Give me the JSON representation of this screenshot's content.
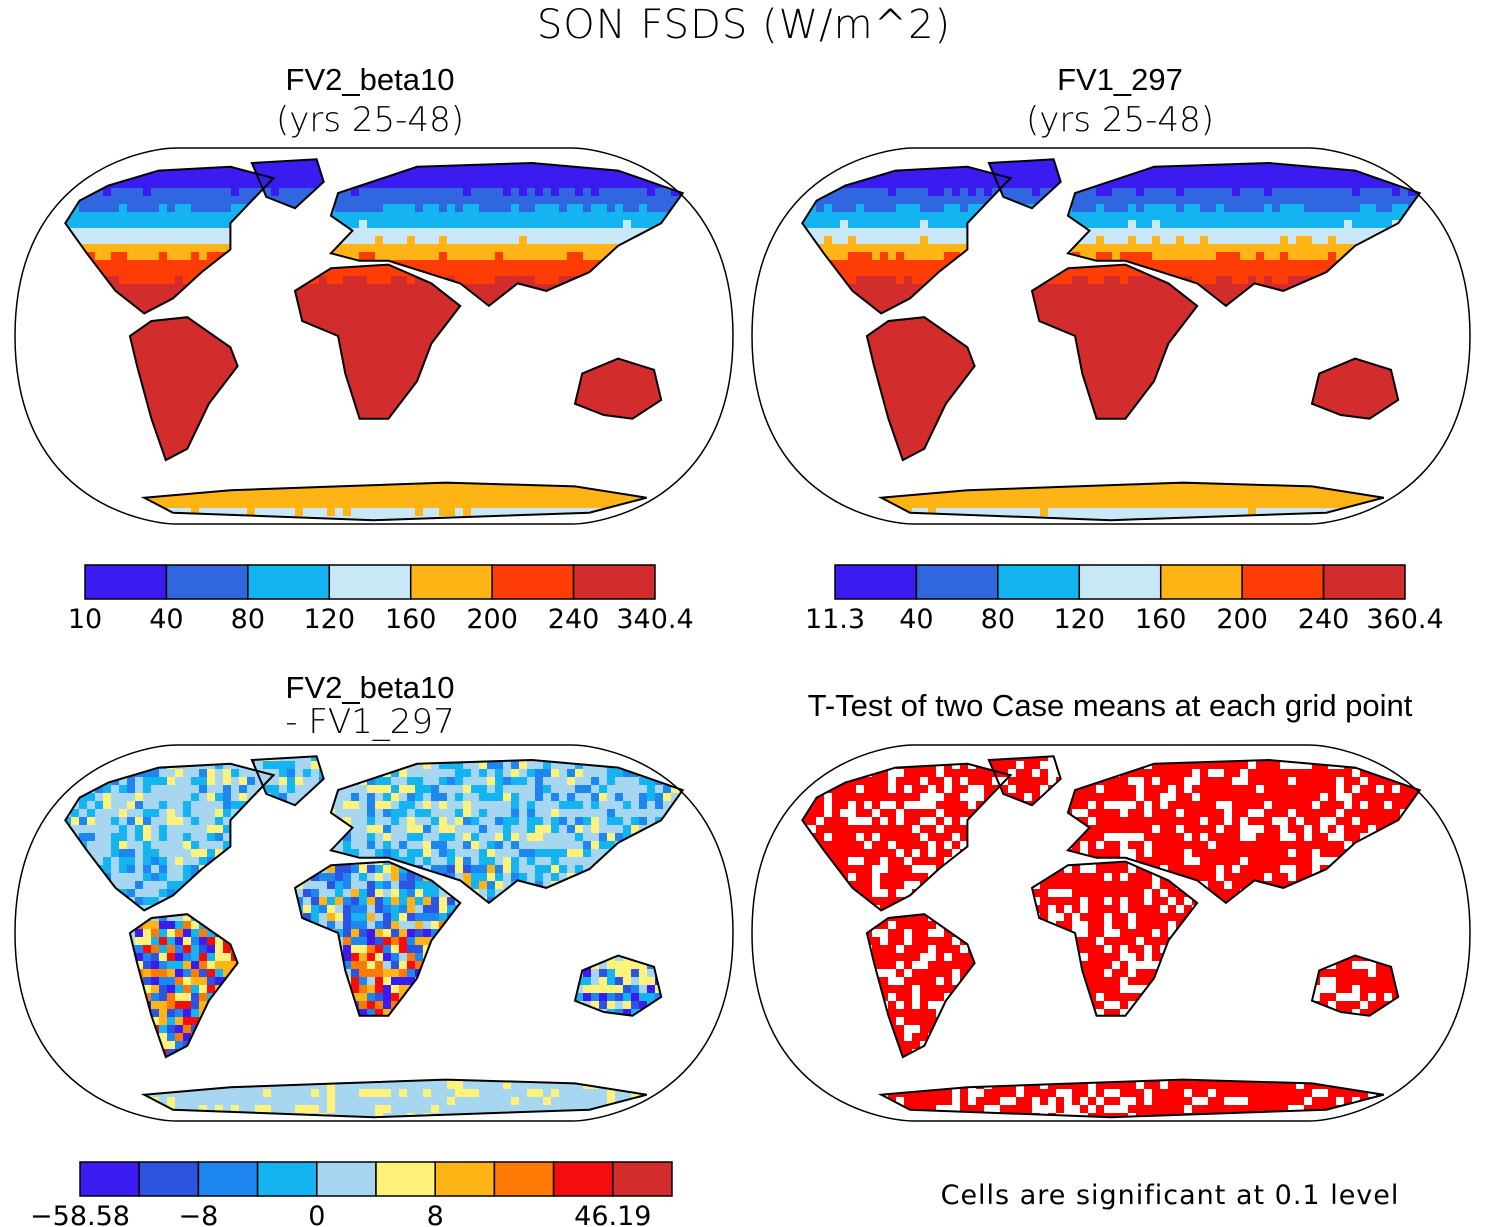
{
  "title": "SON FSDS (W/m^2)",
  "panels": [
    {
      "id": "p1",
      "title": "FV2_beta10",
      "subtitle": "(yrs 25-48)"
    },
    {
      "id": "p2",
      "title": "FV1_297",
      "subtitle": "(yrs 25-48)"
    },
    {
      "id": "p3",
      "title": "FV2_beta10",
      "subtitle": "- FV1_297"
    },
    {
      "id": "p4",
      "title": "T-Test of two Case means at each grid point",
      "subtitle": ""
    }
  ],
  "colorbars": {
    "cb1": {
      "colors": [
        "#3a1cf0",
        "#3066e0",
        "#13b4f0",
        "#c8e8f8",
        "#fdb414",
        "#fd3c06",
        "#d22c2c"
      ],
      "labels": [
        "10",
        "40",
        "80",
        "120",
        "160",
        "200",
        "240",
        "340.4"
      ]
    },
    "cb2": {
      "colors": [
        "#3a1cf0",
        "#3066e0",
        "#13b4f0",
        "#c8e8f8",
        "#fdb414",
        "#fd3c06",
        "#d22c2c"
      ],
      "labels": [
        "11.3",
        "40",
        "80",
        "120",
        "160",
        "200",
        "240",
        "360.4"
      ]
    },
    "cb3": {
      "colors": [
        "#3a1cf0",
        "#2c54e0",
        "#1e86f0",
        "#13b4f0",
        "#a6d6f0",
        "#fff27a",
        "#fdb414",
        "#fd7a06",
        "#f50c0c",
        "#d22c2c"
      ],
      "labels": [
        "-58.58",
        "",
        "-8",
        "",
        "0",
        "",
        "8",
        "",
        "",
        "46.19"
      ]
    }
  },
  "ttest_color": "#ff0000",
  "note": "Cells are significant at 0.1 level"
}
